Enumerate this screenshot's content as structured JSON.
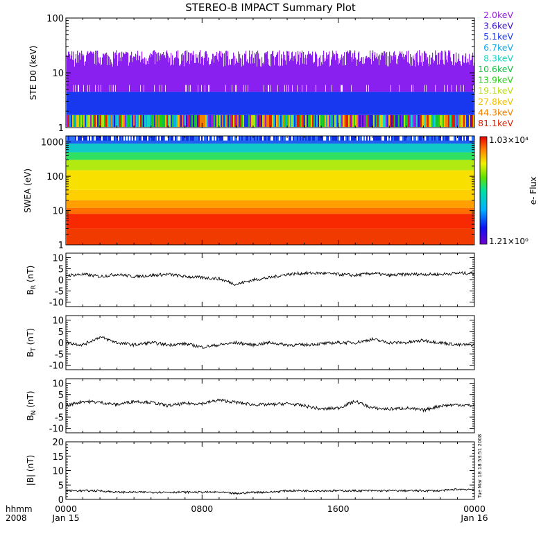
{
  "title": "STEREO-B IMPACT Summary Plot",
  "timestamp": "Tue Mar 18 18:53:51 2008",
  "xaxis": {
    "label_top": "hhmm",
    "label_bottom": "2008",
    "ticks": [
      {
        "hour": 0,
        "top": "0000",
        "bottom": "Jan 15"
      },
      {
        "hour": 8,
        "top": "0800",
        "bottom": ""
      },
      {
        "hour": 16,
        "top": "1600",
        "bottom": ""
      },
      {
        "hour": 24,
        "top": "0000",
        "bottom": "Jan 16"
      }
    ],
    "range_hours": [
      0,
      24
    ]
  },
  "ste": {
    "ylabel": "STE D0 (keV)",
    "yscale": "log",
    "ylim": [
      1,
      100
    ],
    "yticks": [
      "1",
      "10",
      "100"
    ],
    "legend": [
      {
        "label": "2.0keV",
        "color": "#9a20e0"
      },
      {
        "label": "3.6keV",
        "color": "#3a10c8"
      },
      {
        "label": "5.1keV",
        "color": "#1838f0"
      },
      {
        "label": "6.7keV",
        "color": "#10a8e8"
      },
      {
        "label": "8.3keV",
        "color": "#10d8c0"
      },
      {
        "label": "10.6keV",
        "color": "#10c040"
      },
      {
        "label": "13.9keV",
        "color": "#20d010"
      },
      {
        "label": "19.1keV",
        "color": "#b8e010"
      },
      {
        "label": "27.8keV",
        "color": "#f0c000"
      },
      {
        "label": "44.3keV",
        "color": "#f08000"
      },
      {
        "label": "81.1keV",
        "color": "#e02000"
      }
    ]
  },
  "swea": {
    "ylabel": "SWEA (eV)",
    "yscale": "log",
    "ylim": [
      1,
      1500
    ],
    "yticks": [
      "1",
      "10",
      "100",
      "1000"
    ],
    "colorbar": {
      "label": "e- Flux",
      "max": "1.03×10⁴",
      "min": "1.21×10⁰"
    }
  },
  "chart_data": [
    {
      "type": "line",
      "ylabel": "B R (nT)",
      "ylim": [
        -12,
        12
      ],
      "yticks": [
        -10,
        -5,
        0,
        5,
        10
      ],
      "x": [
        0,
        1,
        2,
        3,
        4,
        5,
        6,
        7,
        8,
        9,
        10,
        11,
        12,
        13,
        14,
        15,
        16,
        17,
        18,
        19,
        20,
        21,
        22,
        23,
        24
      ],
      "values": [
        2,
        2.5,
        1.5,
        2.5,
        1.5,
        2,
        2.5,
        1.5,
        1,
        0.5,
        -2,
        0,
        1,
        2.5,
        3,
        3,
        2.5,
        2,
        3,
        2,
        2.5,
        2.5,
        2.5,
        3,
        3
      ]
    },
    {
      "type": "line",
      "ylabel": "B T (nT)",
      "ylim": [
        -12,
        12
      ],
      "yticks": [
        -10,
        -5,
        0,
        5,
        10
      ],
      "x": [
        0,
        1,
        2,
        3,
        4,
        5,
        6,
        7,
        8,
        9,
        10,
        11,
        12,
        13,
        14,
        15,
        16,
        17,
        18,
        19,
        20,
        21,
        22,
        23,
        24
      ],
      "values": [
        0,
        -1,
        2.5,
        0,
        -1,
        0,
        -1,
        -0.5,
        -2,
        -1,
        0,
        -1,
        0,
        -1,
        -1,
        -0.5,
        0,
        0,
        1.5,
        0,
        0,
        1,
        0,
        -1,
        -1
      ]
    },
    {
      "type": "line",
      "ylabel": "B N (nT)",
      "ylim": [
        -12,
        12
      ],
      "yticks": [
        -10,
        -5,
        0,
        5,
        10
      ],
      "x": [
        0,
        1,
        2,
        3,
        4,
        5,
        6,
        7,
        8,
        9,
        10,
        11,
        12,
        13,
        14,
        15,
        16,
        17,
        18,
        19,
        20,
        21,
        22,
        23,
        24
      ],
      "values": [
        0,
        2,
        1.5,
        0.5,
        2,
        1.5,
        0,
        1,
        1,
        2.5,
        1.5,
        0.5,
        0.5,
        1,
        0,
        -1.5,
        -1,
        2,
        -1,
        -1.5,
        -1,
        -2,
        0,
        0.5,
        0
      ]
    },
    {
      "type": "line",
      "ylabel": "|B| (nT)",
      "ylim": [
        0,
        20
      ],
      "yticks": [
        0,
        5,
        10,
        15,
        20
      ],
      "x": [
        0,
        1,
        2,
        3,
        4,
        5,
        6,
        7,
        8,
        9,
        10,
        11,
        12,
        13,
        14,
        15,
        16,
        17,
        18,
        19,
        20,
        21,
        22,
        23,
        24
      ],
      "values": [
        3,
        3,
        3,
        2.5,
        2.5,
        2.5,
        2.5,
        2.5,
        2.5,
        2.5,
        2,
        2.5,
        2.5,
        3,
        3,
        3,
        3,
        3,
        3,
        3,
        3,
        3,
        3,
        3.5,
        3.5
      ]
    }
  ]
}
